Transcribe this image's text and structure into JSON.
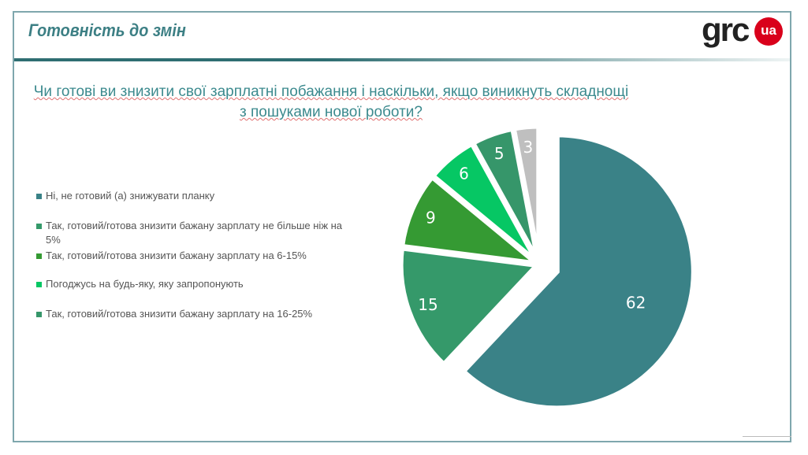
{
  "header": {
    "title": "Готовність до змін",
    "logo_text": "grc",
    "logo_badge": "ua"
  },
  "question": "Чи готові ви знизити свої зарплатні побажання і наскільки, якщо  виникнуть складнощі з пошуками нової роботи?",
  "chart_data": {
    "type": "pie",
    "start": "top",
    "direction": "clockwise",
    "exploded": true,
    "slices": [
      {
        "label": "Ні, не готовий (а) знижувати планку",
        "value": 62,
        "color": "#3a8287"
      },
      {
        "label": "Так, готовий/готова знизити бажану зарплату не більше ніж на 5%",
        "value": 15,
        "color": "#35996a"
      },
      {
        "label": "Так, готовий/готова знизити бажану зарплату на 6-15%",
        "value": 9,
        "color": "#359a33"
      },
      {
        "label": "Погоджусь на будь-яку, яку запропонують",
        "value": 6,
        "color": "#06c764"
      },
      {
        "label": "Так, готовий/готова знизити бажану зарплату на 16-25%",
        "value": 5,
        "color": "#36966a"
      },
      {
        "label": "",
        "value": 3,
        "color": "#bfbfbf"
      }
    ],
    "legend_position": "left"
  }
}
